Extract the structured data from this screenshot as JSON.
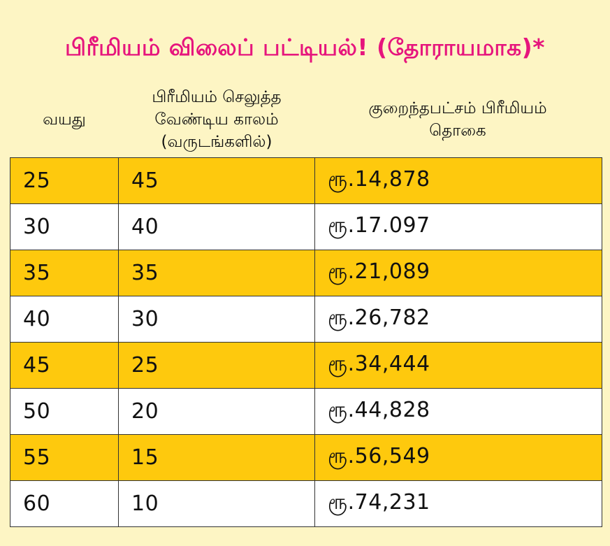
{
  "title": "பிரீமியம் விலைப் பட்டியல்! (தோராயமாக)*",
  "headers": {
    "age": "வயது",
    "term": "பிரீமியம் செலுத்த\nவேண்டிய காலம்\n(வருடங்களில்)",
    "min_premium": "குறைந்தபட்சம் பிரீமியம்\nதொகை"
  },
  "rows": [
    {
      "age": "25",
      "term": "45",
      "amount": "ரூ.14,878"
    },
    {
      "age": "30",
      "term": "40",
      "amount": "ரூ.17.097"
    },
    {
      "age": "35",
      "term": "35",
      "amount": "ரூ.21,089"
    },
    {
      "age": "40",
      "term": "30",
      "amount": "ரூ.26,782"
    },
    {
      "age": "45",
      "term": "25",
      "amount": "ரூ.34,444"
    },
    {
      "age": "50",
      "term": "20",
      "amount": "ரூ.44,828"
    },
    {
      "age": "55",
      "term": "15",
      "amount": "ரூ.56,549"
    },
    {
      "age": "60",
      "term": "10",
      "amount": "ரூ.74,231"
    }
  ],
  "colors": {
    "background": "#fdf5c4",
    "title": "#e6157d",
    "highlight_row": "#fec90d",
    "plain_row": "#ffffff"
  }
}
